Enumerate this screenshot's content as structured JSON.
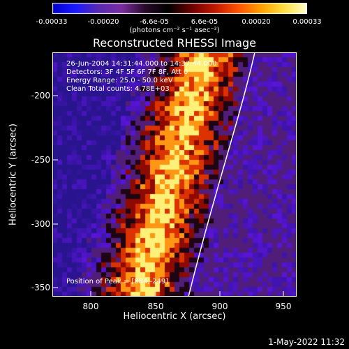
{
  "colorbar": {
    "ticks": [
      "-0.00033",
      "-0.00020",
      "-6.6e-05",
      "6.6e-05",
      "0.00020",
      "0.00033"
    ],
    "units": "(photons cm⁻² s⁻¹ asec⁻²)",
    "colors": [
      "#0000cc",
      "#1a1aff",
      "#5a2ab0",
      "#7a2ea0",
      "#2a0a2a",
      "#000000",
      "#6a0000",
      "#c01800",
      "#ff5000",
      "#ffa000",
      "#ffe040",
      "#ffffd0"
    ]
  },
  "title": "Reconstructed RHESSI Image",
  "info_lines": [
    "26-Jun-2004 14:31:44.000 to 14:37:44.000",
    "Detectors: 3F 4F 5F 6F 7F 8F, Att 0",
    "Energy Range: 25.0 - 50.0 keV",
    "Clean     Total counts: 4.78E+03"
  ],
  "peak": "Position of Peak = [884,-249]",
  "axes": {
    "xlabel": "Heliocentric X (arcsec)",
    "ylabel": "Heliocentric Y (arcsec)",
    "xticks": [
      "800",
      "850",
      "900",
      "950"
    ],
    "yticks": [
      "-200",
      "-250",
      "-300",
      "-350"
    ]
  },
  "footer": "1-May-2022 11:32"
}
